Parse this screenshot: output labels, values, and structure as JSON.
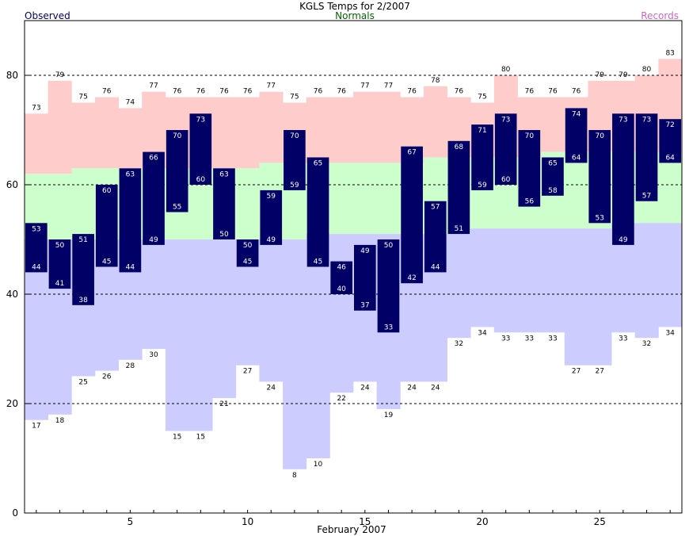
{
  "chart_data": {
    "type": "bar",
    "title": "KGLS Temps for 2/2007",
    "xlabel": "February 2007",
    "ylabel": "",
    "ylim": [
      0,
      90
    ],
    "xlim": [
      0.5,
      28.5
    ],
    "grid": "dashed-horizontal",
    "legend": [
      {
        "name": "Observed",
        "color": "#000066",
        "position": "top-left"
      },
      {
        "name": "Normals",
        "color": "#006600",
        "position": "top-center"
      },
      {
        "name": "Records",
        "color": "#cc66cc",
        "position": "top-right"
      }
    ],
    "x_ticks": [
      5,
      10,
      15,
      20,
      25
    ],
    "y_ticks": [
      0,
      20,
      40,
      60,
      80
    ],
    "colors": {
      "record_band": "#ffcccc",
      "normal_band": "#ccffcc",
      "below_normal_band": "#ccccff",
      "observed_bar": "#000066"
    },
    "days": [
      1,
      2,
      3,
      4,
      5,
      6,
      7,
      8,
      9,
      10,
      11,
      12,
      13,
      14,
      15,
      16,
      17,
      18,
      19,
      20,
      21,
      22,
      23,
      24,
      25,
      26,
      27,
      28
    ],
    "series": [
      {
        "name": "Record High",
        "values": [
          73,
          79,
          75,
          76,
          74,
          77,
          76,
          76,
          76,
          76,
          77,
          75,
          76,
          76,
          77,
          77,
          76,
          78,
          76,
          75,
          80,
          76,
          76,
          76,
          79,
          79,
          80,
          83
        ]
      },
      {
        "name": "Normal High",
        "values": [
          62,
          62,
          63,
          63,
          63,
          63,
          63,
          63,
          63,
          63,
          64,
          64,
          64,
          64,
          64,
          64,
          64,
          65,
          65,
          65,
          65,
          65,
          66,
          66,
          66,
          66,
          66,
          66
        ]
      },
      {
        "name": "Normal Low",
        "values": [
          50,
          50,
          50,
          50,
          50,
          50,
          50,
          50,
          50,
          50,
          50,
          50,
          51,
          51,
          51,
          51,
          51,
          51,
          51,
          52,
          52,
          52,
          52,
          52,
          52,
          53,
          53,
          53
        ]
      },
      {
        "name": "Record Low",
        "values": [
          17,
          18,
          25,
          26,
          28,
          30,
          15,
          15,
          21,
          27,
          24,
          8,
          10,
          22,
          24,
          19,
          24,
          24,
          32,
          34,
          33,
          33,
          33,
          27,
          27,
          33,
          32,
          34
        ]
      },
      {
        "name": "Observed High",
        "values": [
          53,
          50,
          51,
          60,
          63,
          66,
          70,
          73,
          63,
          50,
          59,
          70,
          65,
          46,
          49,
          50,
          67,
          57,
          68,
          71,
          73,
          70,
          65,
          74,
          70,
          73,
          73,
          72
        ]
      },
      {
        "name": "Observed Low",
        "values": [
          44,
          41,
          38,
          45,
          44,
          49,
          55,
          60,
          50,
          45,
          49,
          59,
          45,
          40,
          37,
          33,
          42,
          44,
          51,
          59,
          60,
          56,
          58,
          64,
          53,
          49,
          57,
          64
        ]
      }
    ]
  }
}
